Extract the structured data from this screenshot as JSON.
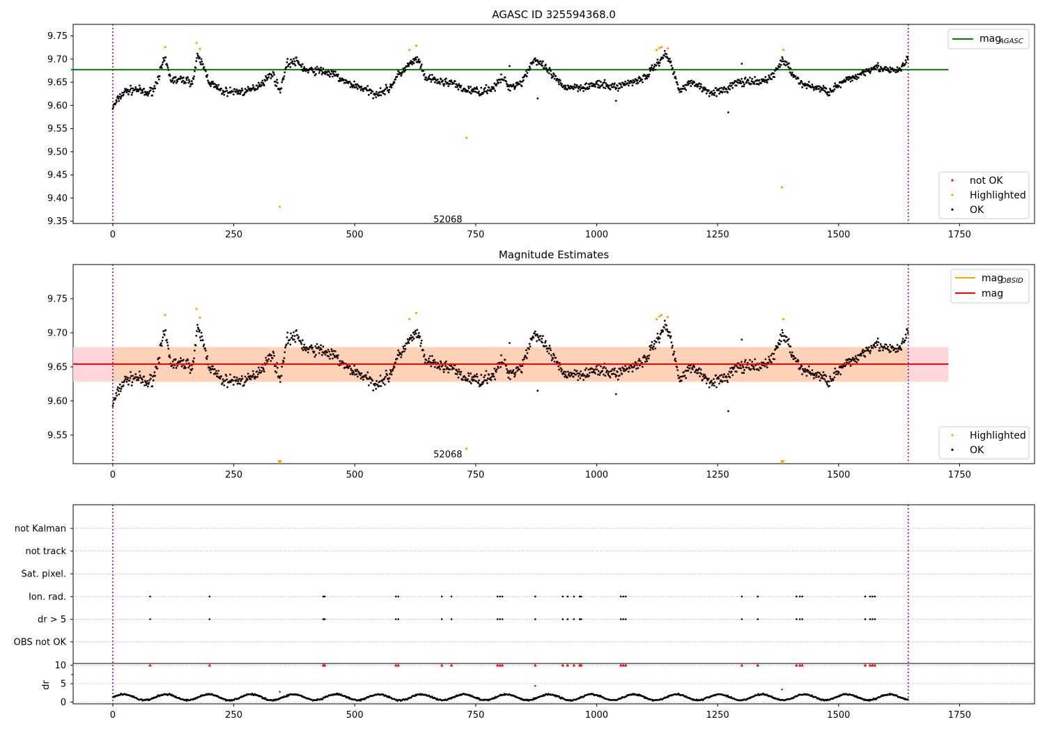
{
  "chart_data": [
    {
      "type": "scatter",
      "title": "AGASC ID 325594368.0",
      "xlim": [
        -82,
        1905
      ],
      "ylim": [
        9.345,
        9.775
      ],
      "xticks": [
        0,
        250,
        500,
        750,
        1000,
        1250,
        1500,
        1750
      ],
      "xtick_labels": [
        "0",
        "250",
        "500",
        "750",
        "1000",
        "1250",
        "1500",
        "1750"
      ],
      "yticks": [
        9.35,
        9.4,
        9.45,
        9.5,
        9.55,
        9.6,
        9.65,
        9.7,
        9.75
      ],
      "ytick_labels": [
        "9.35",
        "9.40",
        "9.45",
        "9.50",
        "9.55",
        "9.60",
        "9.65",
        "9.70",
        "9.75"
      ],
      "vlines": [
        0,
        1644
      ],
      "hline": {
        "name": "mag",
        "subscript": "AGASC",
        "value": 9.677,
        "x_range": [
          0,
          1727
        ],
        "color": "#008000"
      },
      "obsid_annotation": {
        "text": "52068",
        "x": 822,
        "y": 9.365
      },
      "legend_lines": [
        {
          "label": "mag",
          "subscript": "AGASC",
          "color": "#008000"
        }
      ],
      "legend_points": [
        {
          "label": "not OK",
          "color": "#ff0000"
        },
        {
          "label": "Highlighted",
          "color": "#ffa500"
        },
        {
          "label": "OK",
          "color": "#000000"
        }
      ],
      "highlighted_points": [
        [
          108,
          9.726
        ],
        [
          173,
          9.735
        ],
        [
          180,
          9.722
        ],
        [
          345,
          9.381
        ],
        [
          613,
          9.72
        ],
        [
          627,
          9.729
        ],
        [
          731,
          9.53
        ],
        [
          1124,
          9.72
        ],
        [
          1130,
          9.724
        ],
        [
          1134,
          9.726
        ],
        [
          1147,
          9.723
        ],
        [
          1383,
          9.423
        ],
        [
          1386,
          9.72
        ]
      ],
      "ok_curve": [
        [
          0,
          9.595
        ],
        [
          12,
          9.615
        ],
        [
          25,
          9.63
        ],
        [
          50,
          9.635
        ],
        [
          70,
          9.625
        ],
        [
          85,
          9.635
        ],
        [
          100,
          9.68
        ],
        [
          108,
          9.7
        ],
        [
          120,
          9.655
        ],
        [
          150,
          9.655
        ],
        [
          165,
          9.65
        ],
        [
          175,
          9.705
        ],
        [
          185,
          9.69
        ],
        [
          200,
          9.65
        ],
        [
          225,
          9.63
        ],
        [
          250,
          9.63
        ],
        [
          280,
          9.63
        ],
        [
          310,
          9.65
        ],
        [
          330,
          9.67
        ],
        [
          345,
          9.63
        ],
        [
          360,
          9.69
        ],
        [
          380,
          9.695
        ],
        [
          400,
          9.675
        ],
        [
          430,
          9.675
        ],
        [
          460,
          9.665
        ],
        [
          480,
          9.65
        ],
        [
          510,
          9.64
        ],
        [
          540,
          9.625
        ],
        [
          570,
          9.635
        ],
        [
          590,
          9.665
        ],
        [
          615,
          9.69
        ],
        [
          630,
          9.7
        ],
        [
          645,
          9.66
        ],
        [
          680,
          9.65
        ],
        [
          700,
          9.65
        ],
        [
          720,
          9.635
        ],
        [
          760,
          9.63
        ],
        [
          790,
          9.64
        ],
        [
          805,
          9.66
        ],
        [
          820,
          9.64
        ],
        [
          845,
          9.65
        ],
        [
          870,
          9.7
        ],
        [
          900,
          9.675
        ],
        [
          930,
          9.64
        ],
        [
          970,
          9.64
        ],
        [
          1000,
          9.645
        ],
        [
          1040,
          9.64
        ],
        [
          1070,
          9.65
        ],
        [
          1100,
          9.66
        ],
        [
          1125,
          9.69
        ],
        [
          1140,
          9.71
        ],
        [
          1150,
          9.7
        ],
        [
          1170,
          9.635
        ],
        [
          1200,
          9.65
        ],
        [
          1230,
          9.63
        ],
        [
          1260,
          9.63
        ],
        [
          1290,
          9.65
        ],
        [
          1320,
          9.65
        ],
        [
          1340,
          9.65
        ],
        [
          1365,
          9.665
        ],
        [
          1385,
          9.7
        ],
        [
          1400,
          9.675
        ],
        [
          1425,
          9.645
        ],
        [
          1450,
          9.64
        ],
        [
          1480,
          9.63
        ],
        [
          1510,
          9.65
        ],
        [
          1540,
          9.665
        ],
        [
          1575,
          9.685
        ],
        [
          1600,
          9.675
        ],
        [
          1625,
          9.675
        ],
        [
          1644,
          9.7
        ]
      ],
      "ok_outliers": [
        [
          1272,
          9.585
        ],
        [
          1300,
          9.69
        ],
        [
          1040,
          9.61
        ],
        [
          820,
          9.685
        ],
        [
          878,
          9.615
        ]
      ]
    },
    {
      "type": "scatter",
      "title": "Magnitude Estimates",
      "xlim": [
        -82,
        1905
      ],
      "ylim": [
        9.508,
        9.8
      ],
      "xticks": [
        0,
        250,
        500,
        750,
        1000,
        1250,
        1500,
        1750
      ],
      "xtick_labels": [
        "0",
        "250",
        "500",
        "750",
        "1000",
        "1250",
        "1500",
        "1750"
      ],
      "yticks": [
        9.55,
        9.6,
        9.65,
        9.7,
        9.75
      ],
      "ytick_labels": [
        "9.55",
        "9.60",
        "9.65",
        "9.70",
        "9.75"
      ],
      "vlines": [
        0,
        1644
      ],
      "mag_line": {
        "name": "mag",
        "value": 9.654,
        "x_range": [
          -82,
          1727
        ],
        "color": "#ff0000"
      },
      "mag_band_full": {
        "low": 9.628,
        "high": 9.679,
        "x_range": [
          -82,
          1727
        ],
        "color": "#ffd6dc"
      },
      "mag_obsid": {
        "name": "mag",
        "subscript": "OBSID",
        "value": 9.654,
        "low": 9.628,
        "high": 9.679,
        "x_range": [
          0,
          1644
        ],
        "color": "#ffa500"
      },
      "obsid_annotation": {
        "text": "52068",
        "x": 822,
        "y": 9.519
      },
      "legend_lines": [
        {
          "label": "mag",
          "subscript": "OBSID",
          "color": "#ffa500"
        },
        {
          "label": "mag",
          "subscript": "",
          "color": "#ff0000"
        }
      ],
      "legend_points": [
        {
          "label": "Highlighted",
          "color": "#ffa500"
        },
        {
          "label": "OK",
          "color": "#000000"
        }
      ],
      "highlighted_points": [
        [
          108,
          9.726
        ],
        [
          173,
          9.735
        ],
        [
          180,
          9.722
        ],
        [
          613,
          9.72
        ],
        [
          627,
          9.729
        ],
        [
          731,
          9.53
        ],
        [
          1124,
          9.72
        ],
        [
          1130,
          9.724
        ],
        [
          1134,
          9.726
        ],
        [
          1147,
          9.723
        ],
        [
          1386,
          9.72
        ]
      ],
      "offscale_markers": [
        [
          345,
          9.51
        ],
        [
          1384,
          9.51
        ]
      ]
    },
    {
      "type": "scatter",
      "xlim": [
        -82,
        1905
      ],
      "categories": [
        "not Kalman",
        "not track",
        "Sat. pixel.",
        "Ion. rad.",
        "dr > 5",
        "OBS not OK"
      ],
      "xticks": [
        0,
        250,
        500,
        750,
        1000,
        1250,
        1500,
        1750
      ],
      "xtick_labels": [
        "0",
        "250",
        "500",
        "750",
        "1000",
        "1250",
        "1500",
        "1750"
      ],
      "vlines": [
        0,
        1644
      ],
      "flag_x": [
        77,
        200,
        435,
        438,
        585,
        590,
        680,
        700,
        795,
        800,
        805,
        873,
        930,
        940,
        953,
        965,
        968,
        1050,
        1055,
        1060,
        1300,
        1333,
        1413,
        1420,
        1425,
        1555,
        1565,
        1570,
        1575
      ],
      "flag_rows": [
        "Ion. rad.",
        "dr > 5"
      ],
      "dr_panel": {
        "ylabel": "dr",
        "ylim": [
          -0.5,
          10.5
        ],
        "yticks": [
          0,
          5,
          10
        ],
        "ytick_labels": [
          "0",
          "5",
          "10"
        ],
        "ok_mean": 1.3,
        "red_points": [
          [
            345,
            2.8
          ],
          [
            873,
            4.4
          ],
          [
            1383,
            3.4
          ]
        ]
      }
    }
  ]
}
